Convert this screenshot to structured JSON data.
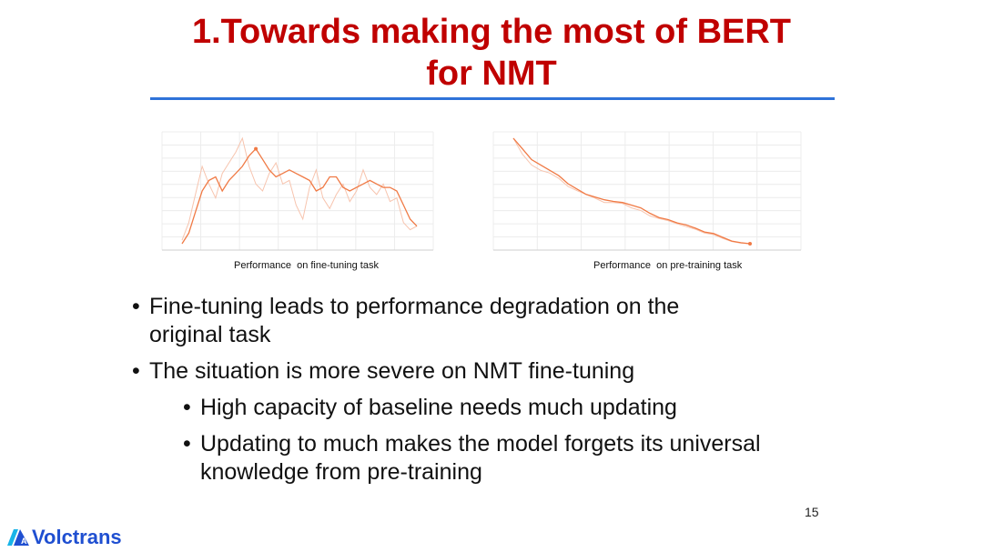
{
  "slide": {
    "title_line1": "1.Towards making the most of BERT",
    "title_line2": "for NMT",
    "page_number": "15"
  },
  "figures": {
    "left_caption": "Performance  on fine-tuning task",
    "right_caption": "Performance  on pre-training task"
  },
  "bullets": [
    {
      "level": 1,
      "text": "Fine-tuning leads to  performance degradation  on the"
    },
    {
      "level": 1,
      "text": "original task",
      "continuation": true
    },
    {
      "level": 1,
      "text": "The situation is more severe on NMT fine-tuning"
    },
    {
      "level": 2,
      "text": "High capacity of baseline needs much updating"
    },
    {
      "level": 2,
      "text": "Updating to much makes the model forgets its universal"
    },
    {
      "level": 2,
      "text": "knowledge from pre-training",
      "continuation": true
    }
  ],
  "logo": {
    "text": "Volctrans",
    "icon": "volctrans-logo-icon"
  },
  "colors": {
    "title": "#c00000",
    "rule": "#2f73d9",
    "line": "#f07a45",
    "line_light": "#f7c4ae",
    "logo": "#1f4fd1"
  },
  "chart_data": [
    {
      "type": "line",
      "title": "",
      "xlabel": "",
      "ylabel": "",
      "grid": true,
      "series": [
        {
          "values": [
            27.2,
            27.5,
            28.1,
            28.7,
            29.0,
            29.1,
            28.7,
            29.0,
            29.2,
            29.4,
            29.7,
            29.9,
            29.6,
            29.3,
            29.1,
            29.2,
            29.3,
            29.2,
            29.1,
            29.0,
            28.7,
            28.8,
            29.1,
            29.1,
            28.8,
            28.7,
            28.8,
            28.9,
            29.0,
            28.9,
            28.8,
            28.8,
            28.7,
            28.3,
            27.9,
            27.7
          ]
        },
        {
          "values": [
            27.3,
            27.8,
            28.6,
            29.4,
            28.9,
            28.5,
            29.2,
            29.5,
            29.8,
            30.2,
            29.4,
            28.9,
            28.7,
            29.2,
            29.5,
            28.9,
            29.0,
            28.3,
            27.9,
            28.8,
            29.3,
            28.5,
            28.2,
            28.6,
            28.9,
            28.4,
            28.7,
            29.3,
            28.8,
            28.6,
            28.9,
            28.4,
            28.5,
            27.8,
            27.6,
            27.7
          ]
        }
      ]
    },
    {
      "type": "line",
      "title": "",
      "xlabel": "",
      "ylabel": "",
      "grid": true,
      "series": [
        {
          "values": [
            27.9,
            27.7,
            27.5,
            27.4,
            27.3,
            27.2,
            27.05,
            26.95,
            26.85,
            26.8,
            26.75,
            26.72,
            26.7,
            26.65,
            26.6,
            26.5,
            26.42,
            26.38,
            26.32,
            26.28,
            26.22,
            26.15,
            26.12,
            26.05,
            25.98,
            25.95,
            25.93
          ]
        },
        {
          "values": [
            27.9,
            27.6,
            27.4,
            27.3,
            27.25,
            27.15,
            27.0,
            26.92,
            26.85,
            26.78,
            26.7,
            26.7,
            26.68,
            26.6,
            26.55,
            26.45,
            26.4,
            26.36,
            26.3,
            26.25,
            26.2,
            26.13,
            26.1,
            26.03,
            25.97,
            25.94,
            25.93
          ]
        }
      ]
    }
  ]
}
